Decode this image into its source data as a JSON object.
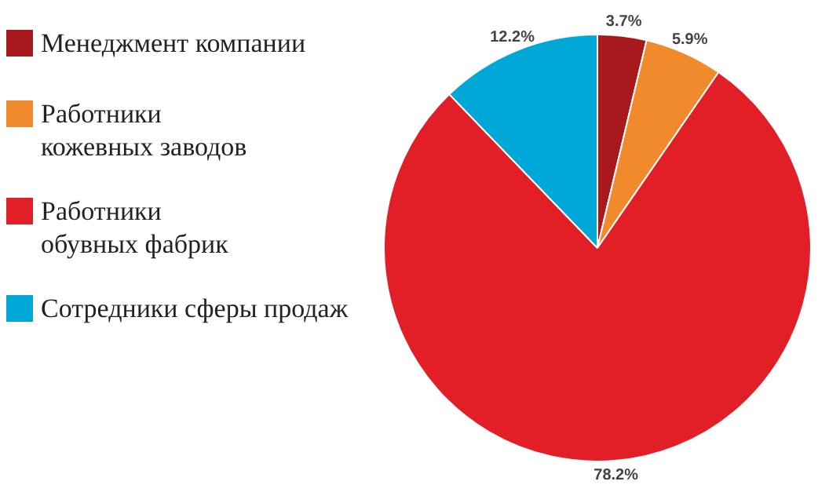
{
  "chart_data": {
    "type": "pie",
    "categories": [
      "Менеджмент компании",
      "Работники кожевных заводов",
      "Работники обувных фабрик",
      "Сотредники сферы продаж"
    ],
    "values": [
      3.7,
      5.9,
      78.2,
      12.2
    ],
    "colors": [
      "#a8191d",
      "#f08a2c",
      "#e21f26",
      "#00a8d8"
    ],
    "value_labels": [
      "3.7%",
      "5.9%",
      "78.2%",
      "12.2%"
    ],
    "legend": "left"
  }
}
